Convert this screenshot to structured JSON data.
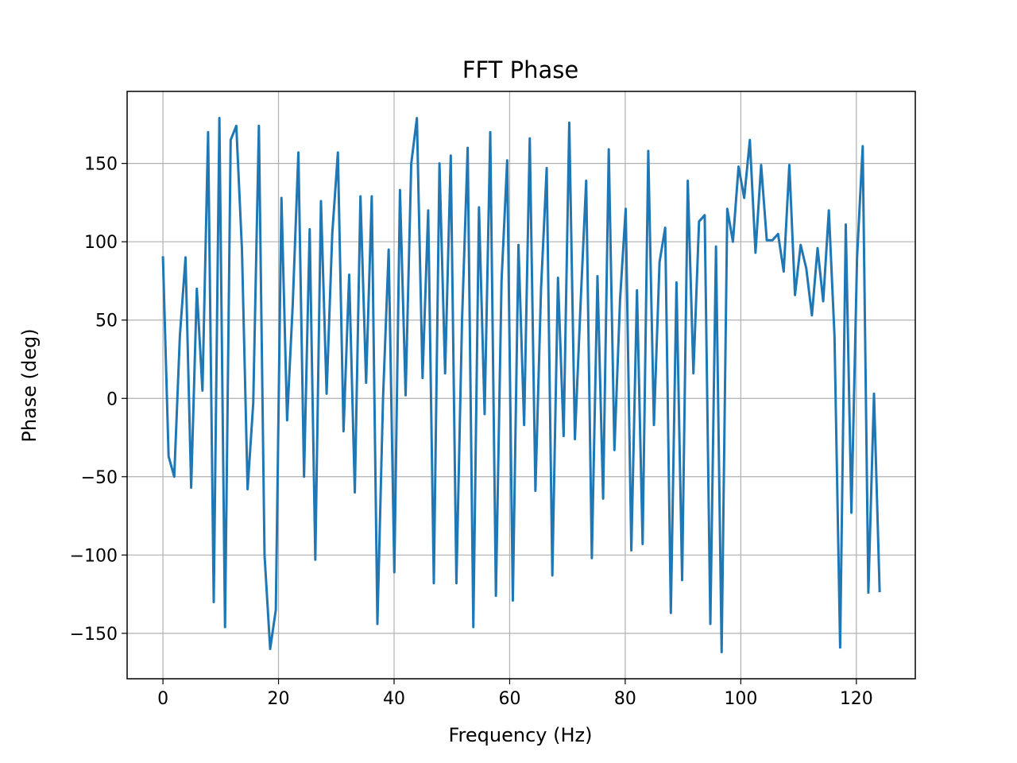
{
  "chart_data": {
    "type": "line",
    "title": "FFT Phase",
    "xlabel": "Frequency (Hz)",
    "ylabel": "Phase (deg)",
    "xlim": [
      -6.2,
      130.2
    ],
    "ylim": [
      -179,
      196
    ],
    "grid": true,
    "x_ticks": [
      0,
      20,
      40,
      60,
      80,
      100,
      120
    ],
    "y_ticks": [
      -150,
      -100,
      -50,
      0,
      50,
      100,
      150
    ],
    "x_tick_labels": [
      "0",
      "20",
      "40",
      "60",
      "80",
      "100",
      "120"
    ],
    "y_tick_labels": [
      "−150",
      "−100",
      "−50",
      "0",
      "50",
      "100",
      "150"
    ],
    "colors": {
      "line": "#1f77b4",
      "grid": "#b0b0b0",
      "axes": "#000000"
    },
    "series": [
      {
        "x_start": 0,
        "x_step": 0.9766,
        "values": [
          90,
          -37,
          -50,
          40,
          90,
          -57,
          70,
          5,
          170,
          -130,
          179,
          -146,
          165,
          174,
          95,
          -58,
          -3,
          174,
          -100,
          -160,
          -135,
          128,
          -14,
          60,
          157,
          -50,
          108,
          -103,
          126,
          3,
          105,
          157,
          -21,
          79,
          -60,
          129,
          10,
          129,
          -144,
          0,
          95,
          -111,
          133,
          2,
          150,
          179,
          13,
          120,
          -118,
          150,
          16,
          155,
          -118,
          50,
          160,
          -146,
          122,
          -10,
          170,
          -126,
          75,
          152,
          -129,
          98,
          -17,
          166,
          -59,
          70,
          147,
          -113,
          77,
          -24,
          176,
          -26,
          60,
          139,
          -102,
          78,
          -64,
          159,
          -33,
          63,
          121,
          -97,
          69,
          -93,
          158,
          -17,
          87,
          109,
          -137,
          74,
          -116,
          139,
          16,
          113,
          117,
          -144,
          97,
          -162,
          121,
          100,
          148,
          128,
          165,
          93,
          149,
          101,
          101,
          105,
          81,
          149,
          66,
          98,
          83,
          53,
          96,
          62,
          120,
          40,
          -159,
          111,
          -73,
          90,
          161,
          -124,
          3,
          -123
        ]
      }
    ]
  }
}
